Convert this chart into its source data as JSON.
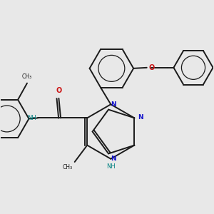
{
  "background_color": "#e8e8e8",
  "bond_color": "#1a1a1a",
  "N_color": "#1414cc",
  "O_color": "#cc1414",
  "NH_color": "#008080",
  "figsize": [
    3.0,
    3.0
  ],
  "dpi": 100,
  "xlim": [
    -2.8,
    2.8
  ],
  "ylim": [
    -2.2,
    2.8
  ]
}
